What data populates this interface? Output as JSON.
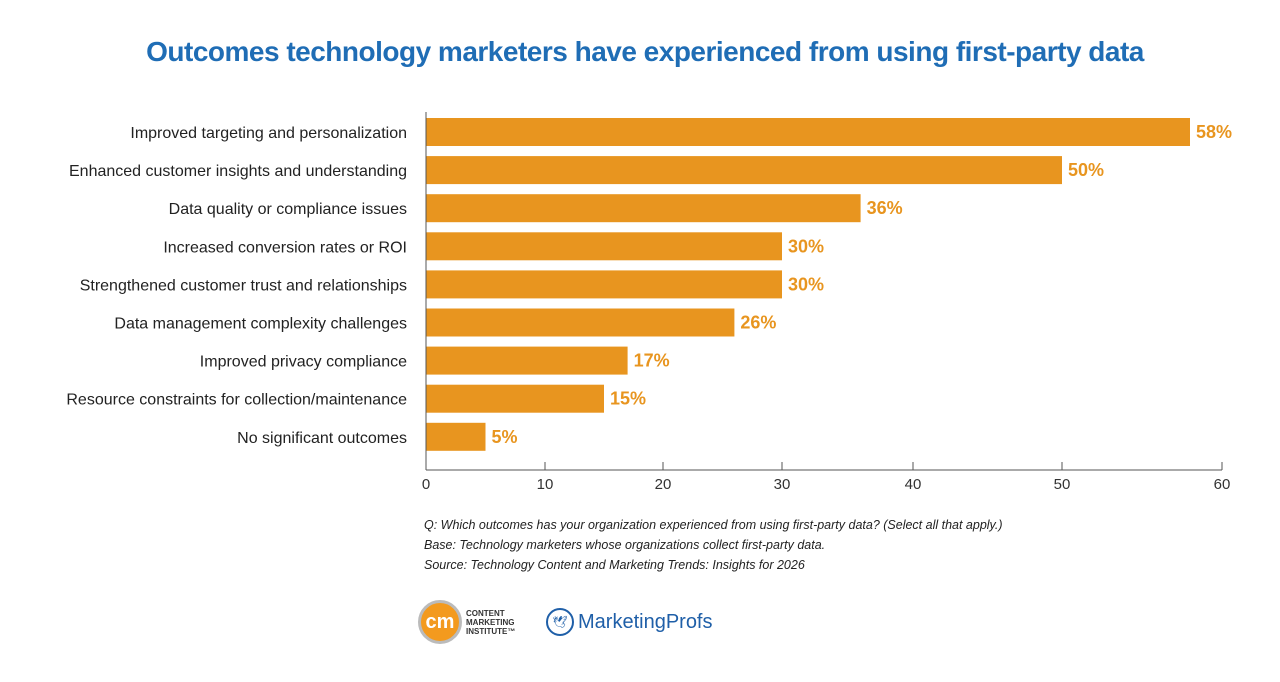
{
  "chart_data": {
    "type": "bar",
    "orientation": "horizontal",
    "title": "Outcomes technology marketers have experienced from using first-party data",
    "categories": [
      "Improved targeting and personalization",
      "Enhanced customer insights and understanding",
      "Data quality or compliance issues",
      "Increased conversion rates or ROI",
      "Strengthened customer trust and relationships",
      "Data management complexity challenges",
      "Improved privacy compliance",
      "Resource constraints for collection/maintenance",
      "No significant outcomes"
    ],
    "values": [
      58,
      50,
      36,
      30,
      30,
      26,
      17,
      15,
      5
    ],
    "data_labels": [
      "58%",
      "50%",
      "36%",
      "30%",
      "30%",
      "26%",
      "17%",
      "15%",
      "5%"
    ],
    "xlim": [
      0,
      60
    ],
    "xticks": [
      "0",
      "10",
      "20",
      "30",
      "40",
      "50",
      "60"
    ],
    "grid": false,
    "bar_color": "#e8951f",
    "title_color": "#1f6db5"
  },
  "notes": [
    "Q: Which outcomes has your organization experienced from using first-party data? (Select all that apply.)",
    "Base: Technology marketers whose organizations collect first-party data.",
    "Source: Technology Content and Marketing Trends: Insights for 2026"
  ],
  "logos": {
    "cmi_mark": "cm",
    "cmi_text": "CONTENT MARKETING INSTITUTE™",
    "mp_text": "MarketingProfs"
  }
}
